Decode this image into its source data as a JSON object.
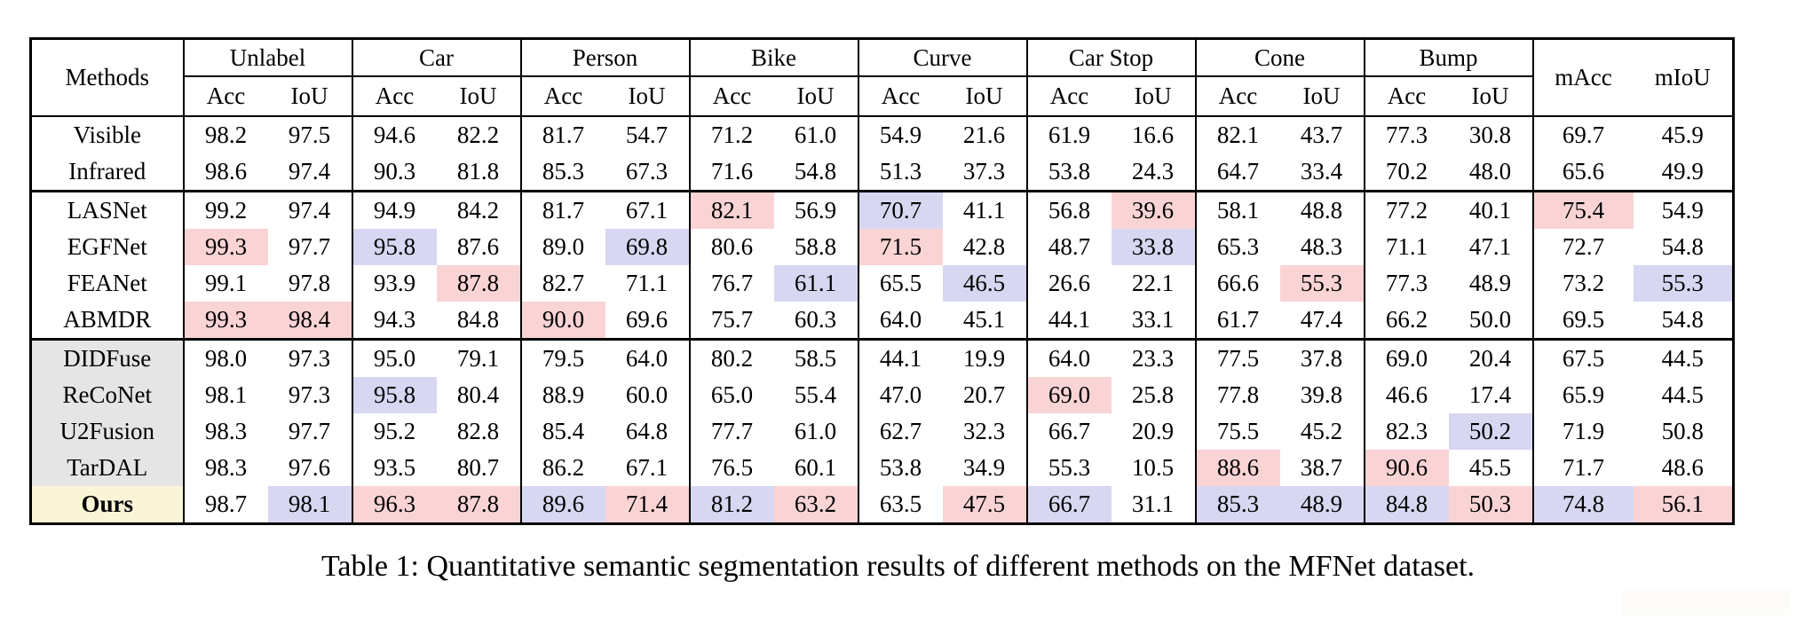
{
  "caption": "Table 1: Quantitative semantic segmentation results of different methods on the MFNet dataset.",
  "table": {
    "header": {
      "methods_label": "Methods",
      "groups": [
        "Unlabel",
        "Car",
        "Person",
        "Bike",
        "Curve",
        "Car Stop",
        "Cone",
        "Bump"
      ],
      "sub_labels": [
        "Acc",
        "IoU"
      ],
      "macc_label": "mAcc",
      "miou_label": "mIoU"
    },
    "colors": {
      "best_highlight_pink": "#fad4d5",
      "second_highlight_blue": "#d8d7f2",
      "method_group_gray": "#e5e5e5",
      "ours_row_cream": "#faf5d6",
      "border_black": "#000000"
    },
    "rows": [
      {
        "name": "Visible",
        "name_style": "plain",
        "block_end": false,
        "values": [
          "98.2",
          "97.5",
          "94.6",
          "82.2",
          "81.7",
          "54.7",
          "71.2",
          "61.0",
          "54.9",
          "21.6",
          "61.9",
          "16.6",
          "82.1",
          "43.7",
          "77.3",
          "30.8",
          "69.7",
          "45.9"
        ],
        "hl": [
          "",
          "",
          "",
          "",
          "",
          "",
          "",
          "",
          "",
          "",
          "",
          "",
          "",
          "",
          "",
          "",
          "",
          ""
        ]
      },
      {
        "name": "Infrared",
        "name_style": "plain",
        "block_end": true,
        "values": [
          "98.6",
          "97.4",
          "90.3",
          "81.8",
          "85.3",
          "67.3",
          "71.6",
          "54.8",
          "51.3",
          "37.3",
          "53.8",
          "24.3",
          "64.7",
          "33.4",
          "70.2",
          "48.0",
          "65.6",
          "49.9"
        ],
        "hl": [
          "",
          "",
          "",
          "",
          "",
          "",
          "",
          "",
          "",
          "",
          "",
          "",
          "",
          "",
          "",
          "",
          "",
          ""
        ]
      },
      {
        "name": "LASNet",
        "name_style": "plain",
        "block_end": false,
        "values": [
          "99.2",
          "97.4",
          "94.9",
          "84.2",
          "81.7",
          "67.1",
          "82.1",
          "56.9",
          "70.7",
          "41.1",
          "56.8",
          "39.6",
          "58.1",
          "48.8",
          "77.2",
          "40.1",
          "75.4",
          "54.9"
        ],
        "hl": [
          "",
          "",
          "",
          "",
          "",
          "",
          "pink",
          "",
          "blue",
          "",
          "",
          "pink",
          "",
          "",
          "",
          "",
          "pink",
          ""
        ]
      },
      {
        "name": "EGFNet",
        "name_style": "plain",
        "block_end": false,
        "values": [
          "99.3",
          "97.7",
          "95.8",
          "87.6",
          "89.0",
          "69.8",
          "80.6",
          "58.8",
          "71.5",
          "42.8",
          "48.7",
          "33.8",
          "65.3",
          "48.3",
          "71.1",
          "47.1",
          "72.7",
          "54.8"
        ],
        "hl": [
          "pink",
          "",
          "blue",
          "",
          "",
          "blue",
          "",
          "",
          "pink",
          "",
          "",
          "blue",
          "",
          "",
          "",
          "",
          "",
          ""
        ]
      },
      {
        "name": "FEANet",
        "name_style": "plain",
        "block_end": false,
        "values": [
          "99.1",
          "97.8",
          "93.9",
          "87.8",
          "82.7",
          "71.1",
          "76.7",
          "61.1",
          "65.5",
          "46.5",
          "26.6",
          "22.1",
          "66.6",
          "55.3",
          "77.3",
          "48.9",
          "73.2",
          "55.3"
        ],
        "hl": [
          "",
          "",
          "",
          "pink",
          "",
          "",
          "",
          "blue",
          "",
          "blue",
          "",
          "",
          "",
          "pink",
          "",
          "",
          "",
          "blue"
        ]
      },
      {
        "name": "ABMDR",
        "name_style": "plain",
        "block_end": true,
        "values": [
          "99.3",
          "98.4",
          "94.3",
          "84.8",
          "90.0",
          "69.6",
          "75.7",
          "60.3",
          "64.0",
          "45.1",
          "44.1",
          "33.1",
          "61.7",
          "47.4",
          "66.2",
          "50.0",
          "69.5",
          "54.8"
        ],
        "hl": [
          "pink",
          "pink",
          "",
          "",
          "pink",
          "",
          "",
          "",
          "",
          "",
          "",
          "",
          "",
          "",
          "",
          "",
          "",
          ""
        ]
      },
      {
        "name": "DIDFuse",
        "name_style": "gray",
        "block_end": false,
        "values": [
          "98.0",
          "97.3",
          "95.0",
          "79.1",
          "79.5",
          "64.0",
          "80.2",
          "58.5",
          "44.1",
          "19.9",
          "64.0",
          "23.3",
          "77.5",
          "37.8",
          "69.0",
          "20.4",
          "67.5",
          "44.5"
        ],
        "hl": [
          "",
          "",
          "",
          "",
          "",
          "",
          "",
          "",
          "",
          "",
          "",
          "",
          "",
          "",
          "",
          "",
          "",
          ""
        ]
      },
      {
        "name": "ReCoNet",
        "name_style": "gray",
        "block_end": false,
        "values": [
          "98.1",
          "97.3",
          "95.8",
          "80.4",
          "88.9",
          "60.0",
          "65.0",
          "55.4",
          "47.0",
          "20.7",
          "69.0",
          "25.8",
          "77.8",
          "39.8",
          "46.6",
          "17.4",
          "65.9",
          "44.5"
        ],
        "hl": [
          "",
          "",
          "blue",
          "",
          "",
          "",
          "",
          "",
          "",
          "",
          "pink",
          "",
          "",
          "",
          "",
          "",
          "",
          ""
        ]
      },
      {
        "name": "U2Fusion",
        "name_style": "gray",
        "block_end": false,
        "values": [
          "98.3",
          "97.7",
          "95.2",
          "82.8",
          "85.4",
          "64.8",
          "77.7",
          "61.0",
          "62.7",
          "32.3",
          "66.7",
          "20.9",
          "75.5",
          "45.2",
          "82.3",
          "50.2",
          "71.9",
          "50.8"
        ],
        "hl": [
          "",
          "",
          "",
          "",
          "",
          "",
          "",
          "",
          "",
          "",
          "",
          "",
          "",
          "",
          "",
          "blue",
          "",
          ""
        ]
      },
      {
        "name": "TarDAL",
        "name_style": "gray",
        "block_end": false,
        "values": [
          "98.3",
          "97.6",
          "93.5",
          "80.7",
          "86.2",
          "67.1",
          "76.5",
          "60.1",
          "53.8",
          "34.9",
          "55.3",
          "10.5",
          "88.6",
          "38.7",
          "90.6",
          "45.5",
          "71.7",
          "48.6"
        ],
        "hl": [
          "",
          "",
          "",
          "",
          "",
          "",
          "",
          "",
          "",
          "",
          "",
          "",
          "pink",
          "",
          "pink",
          "",
          "",
          ""
        ]
      },
      {
        "name": "Ours",
        "name_style": "ours",
        "block_end": false,
        "values": [
          "98.7",
          "98.1",
          "96.3",
          "87.8",
          "89.6",
          "71.4",
          "81.2",
          "63.2",
          "63.5",
          "47.5",
          "66.7",
          "31.1",
          "85.3",
          "48.9",
          "84.8",
          "50.3",
          "74.8",
          "56.1"
        ],
        "hl": [
          "",
          "blue",
          "pink",
          "pink",
          "blue",
          "pink",
          "blue",
          "pink",
          "",
          "pink",
          "blue",
          "",
          "blue",
          "blue",
          "blue",
          "pink",
          "blue",
          "pink"
        ]
      }
    ]
  }
}
